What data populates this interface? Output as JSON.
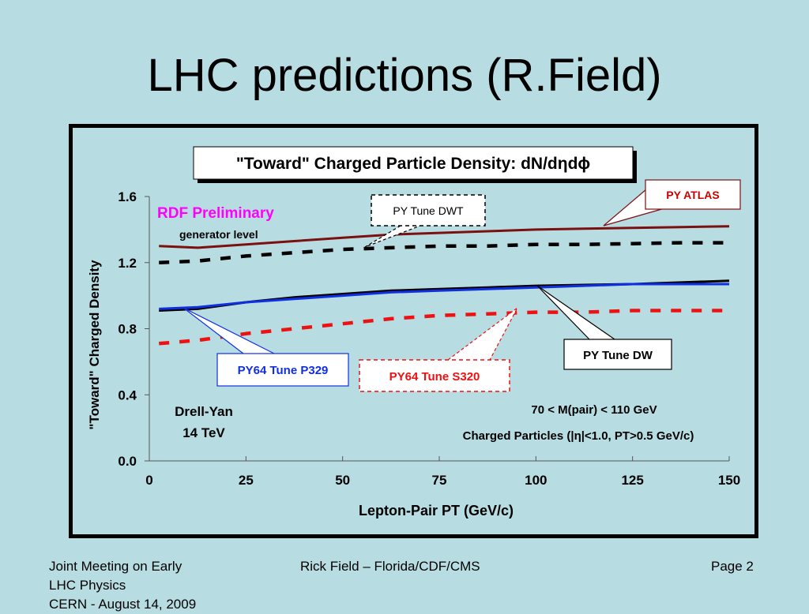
{
  "slide": {
    "title": "LHC predictions (R.Field)",
    "footer_left": [
      "Joint Meeting on Early",
      "LHC Physics",
      "CERN - August 14, 2009"
    ],
    "footer_center": "Rick Field – Florida/CDF/CMS",
    "footer_right": "Page 2"
  },
  "chart_data": {
    "type": "line",
    "title": "\"Toward\" Charged Particle Density: dN/dηdϕ",
    "xlabel": "Lepton-Pair PT  (GeV/c)",
    "ylabel": "\"Toward\" Charged Density",
    "xlim": [
      0,
      150
    ],
    "ylim": [
      0,
      1.6
    ],
    "xticks": [
      "0",
      "25",
      "50",
      "75",
      "100",
      "125",
      "150"
    ],
    "yticks": [
      "0.0",
      "0.4",
      "0.8",
      "1.2",
      "1.6"
    ],
    "grid": false,
    "colors": {
      "atlas": "#7a1010",
      "dwt": "#000000",
      "dw": "#000000",
      "p329": "#1030e0",
      "s320": "#ee1111",
      "rdf": "#ff00ff"
    },
    "series": [
      {
        "name": "PY ATLAS",
        "style": "solid",
        "x": [
          2.5,
          12.5,
          25,
          37.5,
          50,
          62.5,
          75,
          87.5,
          100,
          112.5,
          125,
          137.5,
          150
        ],
        "y": [
          1.3,
          1.29,
          1.31,
          1.33,
          1.35,
          1.37,
          1.38,
          1.39,
          1.4,
          1.405,
          1.41,
          1.415,
          1.42
        ]
      },
      {
        "name": "PY Tune DWT",
        "style": "dashed",
        "x": [
          2.5,
          12.5,
          25,
          37.5,
          50,
          62.5,
          75,
          87.5,
          100,
          112.5,
          125,
          137.5,
          150
        ],
        "y": [
          1.2,
          1.21,
          1.24,
          1.26,
          1.28,
          1.29,
          1.3,
          1.3,
          1.31,
          1.31,
          1.315,
          1.32,
          1.32
        ]
      },
      {
        "name": "PY Tune DW",
        "style": "solid",
        "x": [
          2.5,
          12.5,
          25,
          37.5,
          50,
          62.5,
          75,
          87.5,
          100,
          112.5,
          125,
          137.5,
          150
        ],
        "y": [
          0.91,
          0.92,
          0.96,
          0.99,
          1.01,
          1.03,
          1.04,
          1.05,
          1.06,
          1.065,
          1.07,
          1.08,
          1.09
        ]
      },
      {
        "name": "PY64 Tune P329",
        "style": "solid",
        "x": [
          2.5,
          12.5,
          25,
          37.5,
          50,
          62.5,
          75,
          87.5,
          100,
          112.5,
          125,
          137.5,
          150
        ],
        "y": [
          0.92,
          0.93,
          0.96,
          0.98,
          1.0,
          1.02,
          1.03,
          1.04,
          1.05,
          1.06,
          1.07,
          1.07,
          1.07
        ]
      },
      {
        "name": "PY64 Tune S320",
        "style": "dashed",
        "x": [
          2.5,
          12.5,
          25,
          37.5,
          50,
          62.5,
          75,
          87.5,
          100,
          112.5,
          125,
          137.5,
          150
        ],
        "y": [
          0.71,
          0.73,
          0.77,
          0.8,
          0.83,
          0.86,
          0.88,
          0.89,
          0.9,
          0.9,
          0.91,
          0.91,
          0.91
        ]
      }
    ],
    "annotations": {
      "rdf": "RDF Preliminary",
      "generator": "generator level",
      "process_line1": "Drell-Yan",
      "process_line2": "14 TeV",
      "mass_cut": "70 < M(pair) < 110 GeV",
      "particles_cut": "Charged Particles (|η|<1.0, PT>0.5 GeV/c)"
    },
    "callouts": [
      {
        "label": "PY ATLAS",
        "series": "PY ATLAS"
      },
      {
        "label": "PY Tune DWT",
        "series": "PY Tune DWT"
      },
      {
        "label": "PY64 Tune P329",
        "series": "PY64 Tune P329"
      },
      {
        "label": "PY64 Tune S320",
        "series": "PY64 Tune S320"
      },
      {
        "label": "PY Tune DW",
        "series": "PY Tune DW"
      }
    ]
  }
}
